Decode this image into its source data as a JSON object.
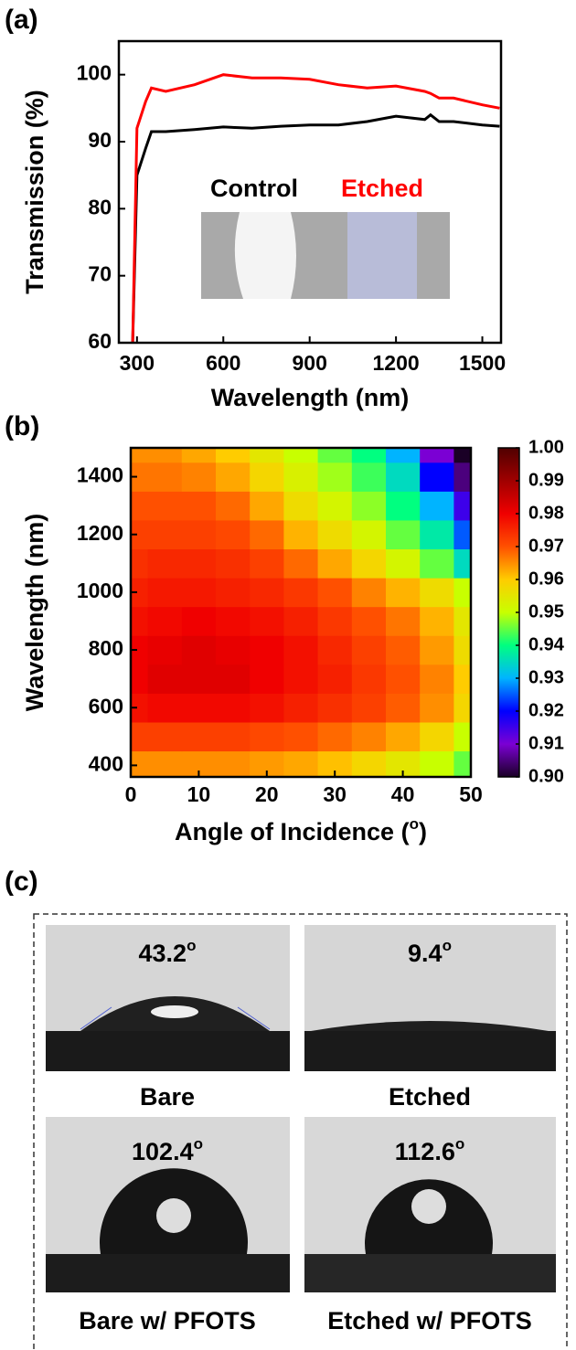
{
  "chart_data": [
    {
      "type": "line",
      "panel_label": "(a)",
      "x_label": "Wavelength (nm)",
      "y_label": "Transmission (%)",
      "x": [
        285,
        300,
        330,
        350,
        400,
        500,
        600,
        700,
        800,
        900,
        1000,
        1100,
        1200,
        1300,
        1320,
        1350,
        1400,
        1500,
        1560
      ],
      "series": [
        {
          "name": "Control",
          "color": "#000000",
          "values": [
            60,
            85,
            89,
            91.5,
            91.5,
            91.8,
            92.2,
            92,
            92.3,
            92.5,
            92.5,
            93,
            93.8,
            93.3,
            94,
            93,
            93,
            92.5,
            92.3
          ]
        },
        {
          "name": "Etched",
          "color": "#ff0000",
          "values": [
            60,
            92,
            96,
            98,
            97.5,
            98.5,
            100,
            99.5,
            99.5,
            99.3,
            98.5,
            98,
            98.3,
            97.5,
            97.2,
            96.5,
            96.5,
            95.5,
            95
          ]
        }
      ],
      "xlim": [
        237,
        1565
      ],
      "ylim": [
        60,
        105
      ],
      "xticks": [
        300,
        600,
        900,
        1200,
        1500
      ],
      "yticks": [
        60,
        70,
        80,
        90,
        100
      ]
    },
    {
      "type": "heatmap",
      "panel_label": "(b)",
      "x_label": [
        "Angle of Incidence (",
        "o",
        ")"
      ],
      "y_label": "Wavelength (nm)",
      "x": [
        0,
        5,
        10,
        15,
        20,
        25,
        30,
        35,
        40,
        45,
        50
      ],
      "y": [
        400,
        500,
        600,
        700,
        800,
        900,
        1000,
        1100,
        1200,
        1300,
        1400,
        1500
      ],
      "z": [
        [
          0.965,
          0.965,
          0.965,
          0.965,
          0.964,
          0.963,
          0.961,
          0.958,
          0.955,
          0.95,
          0.945
        ],
        [
          0.972,
          0.972,
          0.972,
          0.972,
          0.971,
          0.97,
          0.968,
          0.966,
          0.963,
          0.958,
          0.95
        ],
        [
          0.978,
          0.979,
          0.979,
          0.979,
          0.978,
          0.976,
          0.974,
          0.972,
          0.969,
          0.965,
          0.958
        ],
        [
          0.98,
          0.982,
          0.982,
          0.982,
          0.98,
          0.978,
          0.976,
          0.973,
          0.97,
          0.966,
          0.96
        ],
        [
          0.98,
          0.981,
          0.982,
          0.981,
          0.98,
          0.978,
          0.975,
          0.972,
          0.969,
          0.964,
          0.957
        ],
        [
          0.978,
          0.979,
          0.98,
          0.979,
          0.978,
          0.976,
          0.973,
          0.97,
          0.967,
          0.962,
          0.955
        ],
        [
          0.976,
          0.977,
          0.977,
          0.976,
          0.975,
          0.973,
          0.97,
          0.966,
          0.962,
          0.957,
          0.95
        ],
        [
          0.974,
          0.975,
          0.975,
          0.974,
          0.972,
          0.968,
          0.963,
          0.958,
          0.952,
          0.945,
          0.935
        ],
        [
          0.972,
          0.972,
          0.972,
          0.971,
          0.968,
          0.962,
          0.957,
          0.952,
          0.945,
          0.937,
          0.925
        ],
        [
          0.97,
          0.97,
          0.97,
          0.968,
          0.963,
          0.957,
          0.952,
          0.947,
          0.94,
          0.93,
          0.915
        ],
        [
          0.967,
          0.967,
          0.966,
          0.963,
          0.958,
          0.953,
          0.948,
          0.943,
          0.935,
          0.92,
          0.905
        ],
        [
          0.965,
          0.965,
          0.963,
          0.96,
          0.955,
          0.95,
          0.945,
          0.94,
          0.93,
          0.91,
          0.9
        ]
      ],
      "xlim": [
        0,
        50
      ],
      "ylim": [
        360,
        1500
      ],
      "xticks": [
        0,
        10,
        20,
        30,
        40,
        50
      ],
      "yticks": [
        400,
        600,
        800,
        1000,
        1200,
        1400
      ],
      "zlim": [
        0.9,
        1.0
      ],
      "cticks": [
        {
          "value": 0.9,
          "label": "0.90"
        },
        {
          "value": 0.91,
          "label": "0.91"
        },
        {
          "value": 0.92,
          "label": "0.92"
        },
        {
          "value": 0.93,
          "label": "0.93"
        },
        {
          "value": 0.94,
          "label": "0.94"
        },
        {
          "value": 0.95,
          "label": "0.95"
        },
        {
          "value": 0.96,
          "label": "0.96"
        },
        {
          "value": 0.97,
          "label": "0.97"
        },
        {
          "value": 0.98,
          "label": "0.98"
        },
        {
          "value": 0.99,
          "label": "0.99"
        },
        {
          "value": 1.0,
          "label": "1.00"
        }
      ],
      "colormap": [
        "#1a0026",
        "#7b00d4",
        "#0000ff",
        "#00b4ff",
        "#00ff80",
        "#c8ff00",
        "#ffcc00",
        "#ff5000",
        "#f00000",
        "#a00000",
        "#500000"
      ]
    }
  ],
  "panel_c": {
    "label": "(c)",
    "photos": [
      {
        "angle": "43.2",
        "sup": "o",
        "caption": "Bare"
      },
      {
        "angle": "9.4",
        "sup": "o",
        "caption": "Etched"
      },
      {
        "angle": "102.4",
        "sup": "o",
        "caption": "Bare w/ PFOTS"
      },
      {
        "angle": "112.6",
        "sup": "o",
        "caption": "Etched w/ PFOTS"
      }
    ]
  }
}
